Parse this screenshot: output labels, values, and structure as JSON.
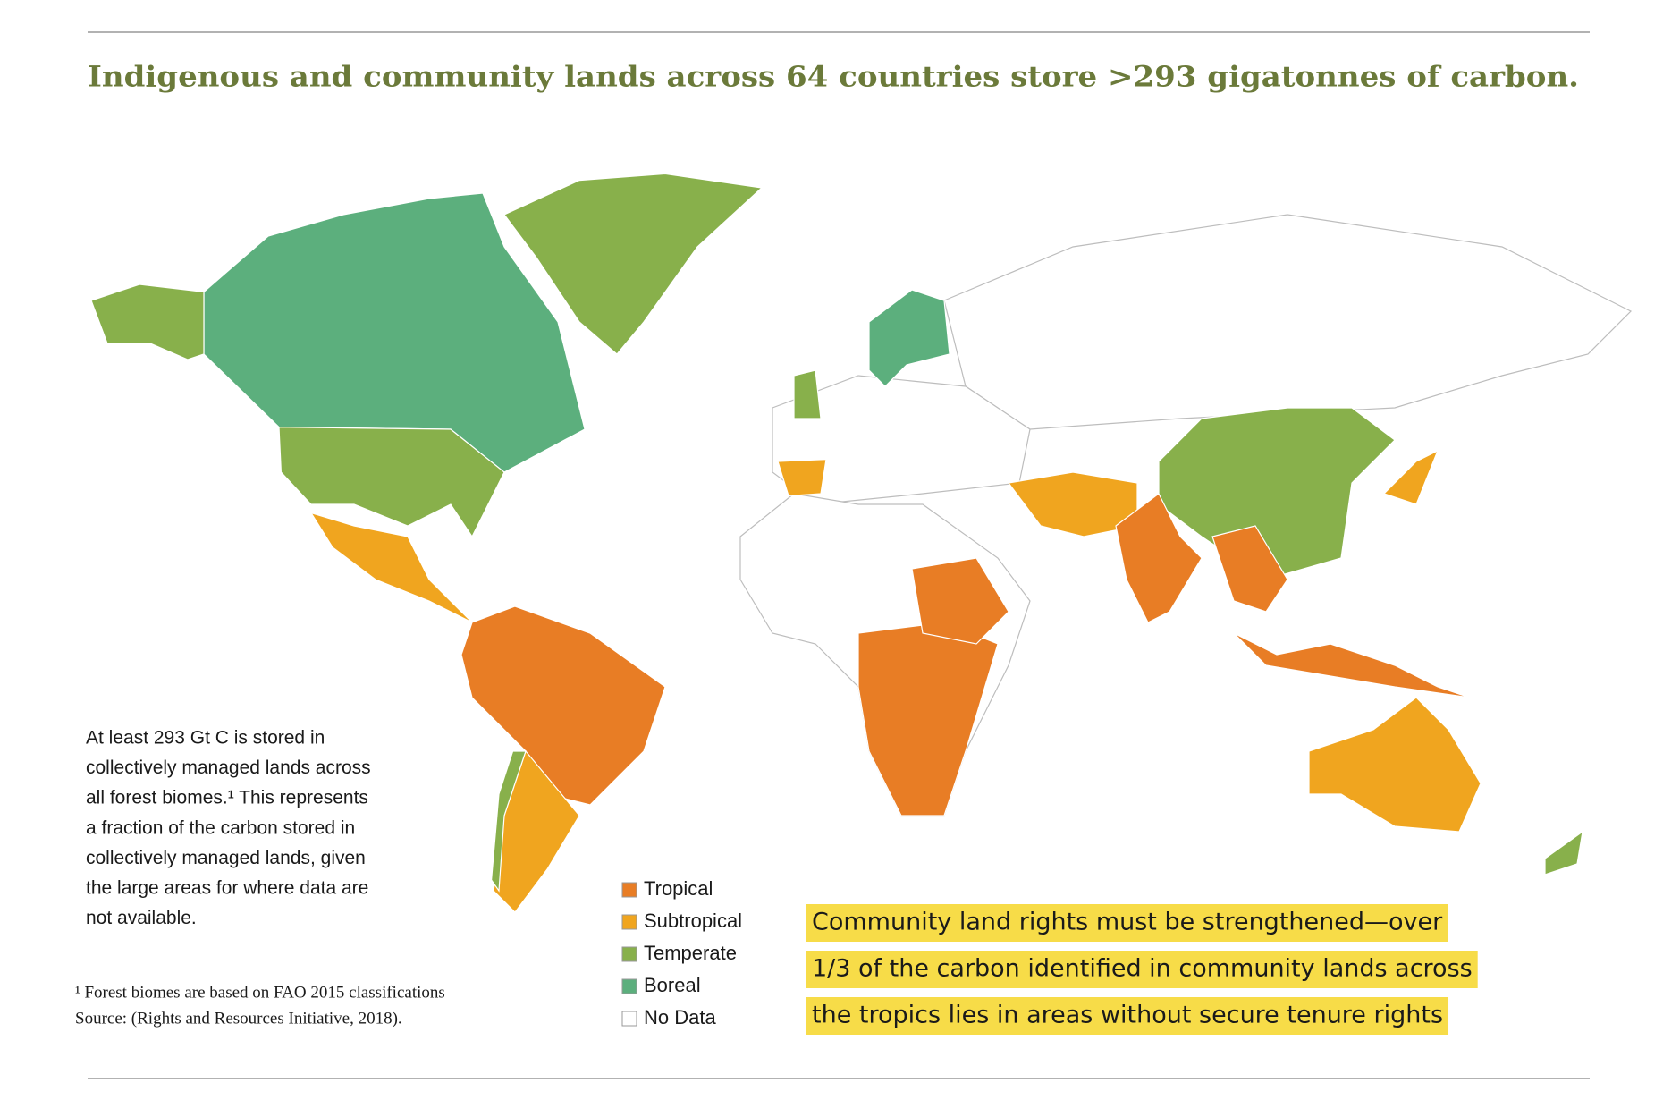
{
  "title": "Indigenous and community lands across 64 countries store >293 gigatonnes of carbon.",
  "body": [
    "At least 293 Gt C is stored in",
    "collectively managed lands across",
    "all forest biomes.¹ This represents",
    "a fraction of the carbon stored in",
    "collectively managed lands, given",
    "the large areas for where data are",
    "not available."
  ],
  "footnote": [
    "¹ Forest biomes are based on FAO 2015 classifications",
    "Source: (Rights and Resources Initiative, 2018)."
  ],
  "legend": [
    {
      "label": "Tropical",
      "color": "#e87d25"
    },
    {
      "label": "Subtropical",
      "color": "#f0a51f"
    },
    {
      "label": "Temperate",
      "color": "#88b04b"
    },
    {
      "label": "Boreal",
      "color": "#5caf7d"
    },
    {
      "label": "No Data",
      "color": "#ffffff"
    }
  ],
  "callout": [
    "Community land rights must be strengthened—over",
    "1/3 of the carbon identified in community lands across",
    "the tropics lies in areas without secure tenure rights"
  ],
  "callout_color": "#f7dc48"
}
